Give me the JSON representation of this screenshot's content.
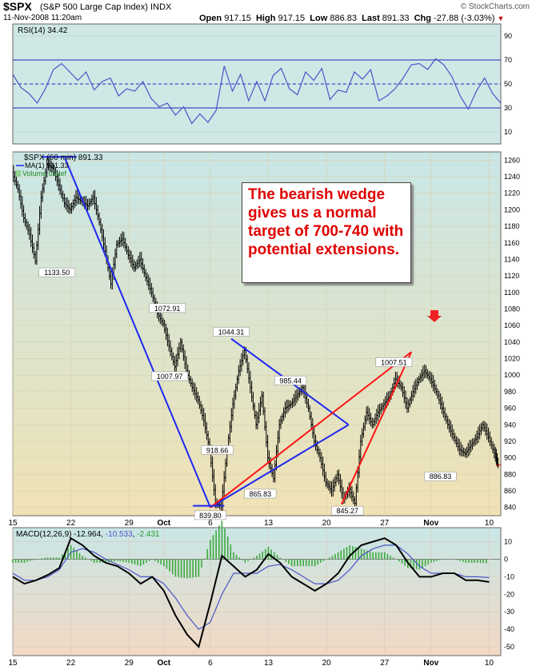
{
  "header": {
    "symbol": "$SPX",
    "description": "(S&P 500 Large Cap Index) INDX",
    "datetime": "11-Nov-2008 11:20am",
    "open_label": "Open",
    "open": "917.15",
    "high_label": "High",
    "high": "917.15",
    "low_label": "Low",
    "low": "886.83",
    "last_label": "Last",
    "last": "891.33",
    "chg_label": "Chg",
    "chg": "-27.88 (-3.03%)",
    "brand": "© StockCharts.com"
  },
  "colors": {
    "rsi_bg": "#cfe8e6",
    "price_bg_top": "#c9e6e6",
    "price_bg_bottom": "#f0e2b4",
    "macd_bg_top": "#c9e6e6",
    "macd_bg_bottom": "#f2d9c4",
    "trend_blue": "#1e28f0",
    "wedge_red": "#ff1414",
    "callout_red": "#e00000"
  },
  "callout": {
    "text": "The bearish wedge gives us a normal target of 700-740 with potential extensions."
  },
  "chart_data": [
    {
      "type": "line",
      "name": "RSI panel",
      "legend": "RSI(14) 34.42",
      "ylim": [
        0,
        100
      ],
      "yticks": [
        10,
        30,
        50,
        70,
        90
      ],
      "reference_lines": [
        30,
        50,
        70
      ],
      "x": [
        0,
        3,
        6,
        9,
        12,
        15,
        18,
        21,
        24,
        27,
        30,
        33,
        36,
        39,
        42,
        45,
        48,
        51,
        54,
        57,
        60,
        63,
        66,
        69,
        72,
        75,
        78,
        81,
        84,
        87,
        90,
        93,
        96,
        99,
        102,
        105,
        108,
        111,
        114,
        117,
        120,
        123,
        126,
        129,
        132,
        135,
        138,
        141,
        144,
        147,
        150,
        153,
        156,
        159,
        162,
        165,
        168,
        171,
        174,
        177,
        180
      ],
      "values": [
        58,
        47,
        42,
        34,
        46,
        62,
        67,
        60,
        53,
        60,
        45,
        52,
        55,
        40,
        46,
        44,
        52,
        38,
        31,
        34,
        24,
        31,
        17,
        25,
        18,
        28,
        65,
        44,
        58,
        36,
        52,
        36,
        57,
        63,
        46,
        41,
        60,
        53,
        63,
        37,
        45,
        43,
        60,
        54,
        62,
        36,
        40,
        46,
        55,
        66,
        67,
        62,
        71,
        66,
        56,
        40,
        29,
        44,
        55,
        42,
        34
      ]
    },
    {
      "type": "bar",
      "name": "SPX 60-minute price bars",
      "legend": "$SPX (60 min) 891.33",
      "legend2": "MA(1) 891.33",
      "legend3": "Volume undef",
      "ylim": [
        830,
        1270
      ],
      "yticks": [
        840,
        860,
        880,
        900,
        920,
        940,
        960,
        980,
        1000,
        1020,
        1040,
        1060,
        1080,
        1100,
        1120,
        1140,
        1160,
        1180,
        1200,
        1220,
        1240,
        1260
      ],
      "xtick_labels": [
        "15",
        "22",
        "29",
        "Oct",
        "6",
        "13",
        "20",
        "27",
        "Nov",
        "10"
      ],
      "xtick_sessions": [
        0,
        5,
        10,
        13,
        17,
        22,
        27,
        32,
        36,
        41
      ],
      "x_session": [
        0,
        0.5,
        1,
        1.5,
        2,
        2.5,
        3,
        3.5,
        4,
        4.5,
        5,
        5.5,
        6,
        6.5,
        7,
        7.5,
        8,
        8.5,
        9,
        9.5,
        10,
        10.5,
        11,
        11.5,
        12,
        12.5,
        13,
        13.5,
        14,
        14.5,
        15,
        15.5,
        16,
        16.5,
        17,
        17.5,
        18,
        18.5,
        19,
        19.5,
        20,
        20.5,
        21,
        21.5,
        22,
        22.5,
        23,
        23.5,
        24,
        24.5,
        25,
        25.5,
        26,
        26.5,
        27,
        27.5,
        28,
        28.5,
        29,
        29.5,
        30,
        30.5,
        31,
        31.5,
        32,
        32.5,
        33,
        33.5,
        34,
        34.5,
        35,
        35.5,
        36,
        36.5,
        37,
        37.5,
        38,
        38.5,
        39,
        39.5,
        40,
        40.5,
        41,
        41.5,
        41.8
      ],
      "close": [
        1245,
        1225,
        1190,
        1170,
        1138,
        1215,
        1255,
        1250,
        1230,
        1208,
        1200,
        1215,
        1210,
        1205,
        1215,
        1185,
        1150,
        1110,
        1158,
        1165,
        1145,
        1130,
        1140,
        1118,
        1100,
        1075,
        1062,
        1035,
        1010,
        1040,
        1005,
        985,
        970,
        945,
        910,
        845,
        842,
        910,
        965,
        1005,
        1030,
        985,
        940,
        975,
        900,
        875,
        940,
        960,
        965,
        975,
        985,
        960,
        920,
        900,
        870,
        860,
        880,
        850,
        862,
        845,
        920,
        955,
        940,
        955,
        965,
        975,
        995,
        985,
        960,
        980,
        995,
        1005,
        995,
        980,
        960,
        940,
        925,
        910,
        905,
        915,
        925,
        940,
        925,
        905,
        892
      ],
      "annotations": [
        {
          "label": "1133.50",
          "session": 3.8,
          "value": 1133.5
        },
        {
          "label": "1072.91",
          "session": 13.3,
          "value": 1072.91
        },
        {
          "label": "1007.97",
          "session": 13.5,
          "value": 1007.97
        },
        {
          "label": "1044.31",
          "session": 18.8,
          "value": 1044.31
        },
        {
          "label": "918.66",
          "session": 17.6,
          "value": 918.66
        },
        {
          "label": "839.80",
          "session": 17.0,
          "value": 839.8
        },
        {
          "label": "865.83",
          "session": 21.3,
          "value": 865.83
        },
        {
          "label": "985.44",
          "session": 23.9,
          "value": 985.44
        },
        {
          "label": "845.27",
          "session": 28.8,
          "value": 845.27
        },
        {
          "label": "1007.51",
          "session": 32.8,
          "value": 1007.51
        },
        {
          "label": "886.83",
          "session": 36.8,
          "value": 886.83
        }
      ],
      "trendlines": [
        {
          "color": "blue",
          "from": [
            4.5,
            1262
          ],
          "to": [
            17.0,
            840
          ]
        },
        {
          "color": "blue",
          "from": [
            18.8,
            1044
          ],
          "to": [
            28.9,
            940
          ]
        },
        {
          "color": "blue",
          "from": [
            17.0,
            840
          ],
          "to": [
            28.9,
            940
          ]
        },
        {
          "color": "red",
          "from": [
            17.0,
            840
          ],
          "to": [
            34.3,
            1028
          ]
        },
        {
          "color": "red",
          "from": [
            28.3,
            844
          ],
          "to": [
            34.3,
            1028
          ]
        }
      ]
    },
    {
      "type": "line",
      "name": "MACD panel",
      "legend": "MACD(12,26,9)",
      "macd_value": "-12.964",
      "signal_value": "-10.533",
      "hist_value": "-2.431",
      "ylim": [
        -55,
        18
      ],
      "yticks": [
        -50,
        -40,
        -30,
        -20,
        -10,
        0,
        10
      ],
      "x": [
        0,
        1,
        2,
        3,
        4,
        5,
        6,
        7,
        8,
        9,
        10,
        11,
        12,
        13,
        14,
        15,
        16,
        17,
        18,
        19,
        20,
        21,
        22,
        23,
        24,
        25,
        26,
        27,
        28,
        29,
        30,
        31,
        32,
        33,
        34,
        35,
        36,
        37,
        38,
        39,
        40,
        41
      ],
      "macd": [
        -10,
        -14,
        -12,
        -9,
        -5,
        12,
        8,
        2,
        -2,
        -4,
        -8,
        -14,
        -10,
        -18,
        -32,
        -43,
        -50,
        -25,
        2,
        -4,
        -10,
        -6,
        3,
        -2,
        -10,
        -14,
        -18,
        -14,
        -8,
        2,
        8,
        10,
        12,
        8,
        -2,
        -10,
        -10,
        -8,
        -8,
        -12,
        -12,
        -13
      ],
      "signal": [
        -8,
        -12,
        -12,
        -10,
        -6,
        4,
        6,
        4,
        0,
        -3,
        -6,
        -10,
        -10,
        -14,
        -22,
        -32,
        -40,
        -36,
        -20,
        -8,
        -8,
        -8,
        -4,
        -3,
        -6,
        -10,
        -14,
        -14,
        -12,
        -6,
        2,
        6,
        8,
        8,
        3,
        -4,
        -8,
        -8,
        -8,
        -10,
        -10,
        -10.5
      ]
    }
  ]
}
